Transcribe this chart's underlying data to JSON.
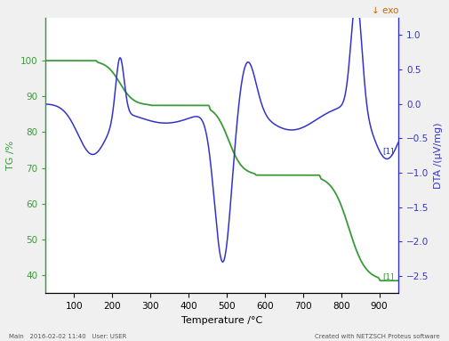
{
  "title": "",
  "xlabel": "Temperature /°C",
  "ylabel_left": "TG /%",
  "ylabel_right": "DTA /(μV/mg)",
  "exo_label": "↓ exo",
  "bg_color": "#f0f0f0",
  "plot_bg_color": "#ffffff",
  "tg_color": "#3a9a3a",
  "dta_color": "#3333cc",
  "left_axis_color": "#3a9a3a",
  "right_axis_color": "#3333cc",
  "xlim": [
    25,
    950
  ],
  "ylim_left": [
    35,
    112
  ],
  "ylim_right": [
    -2.75,
    1.25
  ],
  "xticks": [
    100,
    200,
    300,
    400,
    500,
    600,
    700,
    800,
    900
  ],
  "yticks_left": [
    40,
    50,
    60,
    70,
    80,
    90,
    100
  ],
  "yticks_right": [
    -2.5,
    -2.0,
    -1.5,
    -1.0,
    -0.5,
    0.0,
    0.5,
    1.0
  ],
  "footer_left": "Main   2016-02-02 11:40   User: USER",
  "footer_right": "Created with NETZSCH Proteus software",
  "figsize": [
    5.05,
    3.83
  ],
  "dpi": 100
}
